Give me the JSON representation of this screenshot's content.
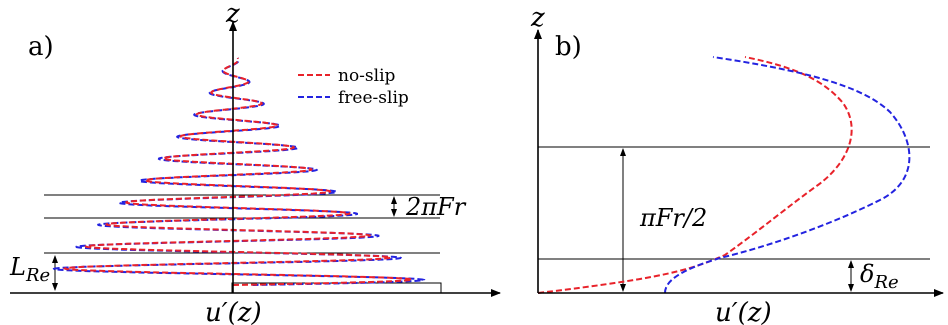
{
  "figure": {
    "panel_a": {
      "label": "a)",
      "axis_z": "z",
      "axis_u": "u′(z)",
      "legend": [
        {
          "label": "no-slip",
          "color": "#e8222a",
          "style": "dashed"
        },
        {
          "label": "free-slip",
          "color": "#2323e0",
          "style": "dashed"
        }
      ],
      "annotation_wavelength": "2πFr",
      "annotation_boundary_layer_main": "L",
      "annotation_boundary_layer_sub": "Re"
    },
    "panel_b": {
      "label": "b)",
      "axis_z": "z",
      "axis_u": "u′(z)",
      "annotation_half_wavelength": "πFr/2",
      "annotation_delta_main": "δ",
      "annotation_delta_sub": "Re"
    }
  },
  "colors": {
    "no_slip": "#e8222a",
    "free_slip": "#2323e0",
    "axes": "#000000",
    "guide_lines": "#000000"
  }
}
